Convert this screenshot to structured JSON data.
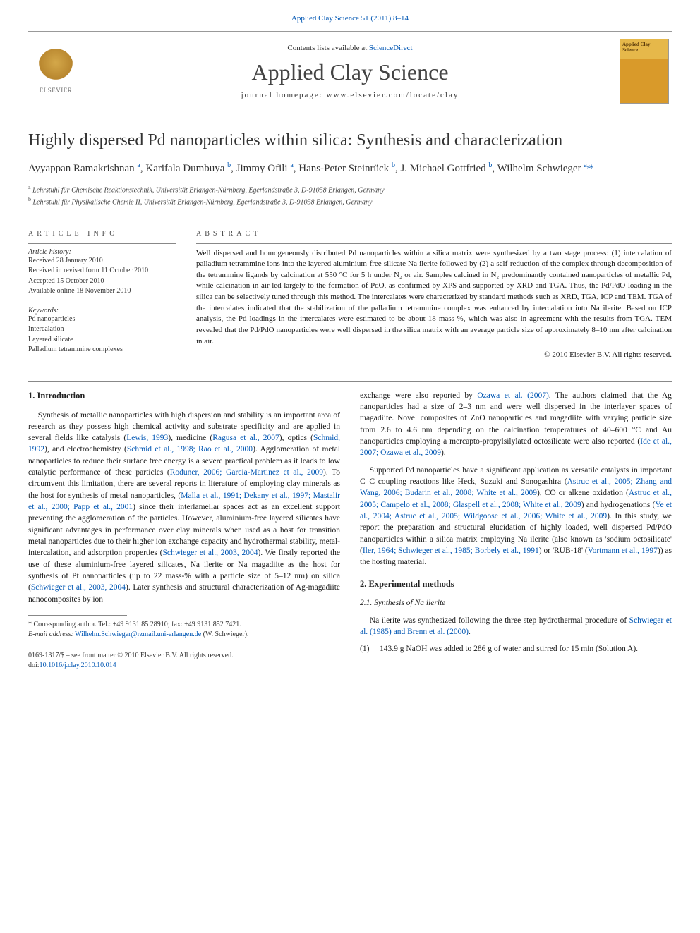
{
  "topbar": "Applied Clay Science 51 (2011) 8–14",
  "masthead": {
    "publisher": "ELSEVIER",
    "contents_prefix": "Contents lists available at ",
    "contents_link": "ScienceDirect",
    "journal_title": "Applied Clay Science",
    "homepage_prefix": "journal homepage: ",
    "homepage": "www.elsevier.com/locate/clay",
    "cover_title": "Applied Clay Science"
  },
  "article_title": "Highly dispersed Pd nanoparticles within silica: Synthesis and characterization",
  "authors_html": "Ayyappan Ramakrishnan <sup>a</sup>, Karifala Dumbuya <sup>b</sup>, Jimmy Ofili <sup>a</sup>, Hans-Peter Steinrück <sup>b</sup>, J. Michael Gottfried <sup>b</sup>, Wilhelm Schwieger <sup>a,</sup><span class=\"corr\">*</span>",
  "affiliations": [
    {
      "sup": "a",
      "text": "Lehrstuhl für Chemische Reaktionstechnik, Universität Erlangen-Nürnberg, Egerlandstraße 3, D-91058 Erlangen, Germany"
    },
    {
      "sup": "b",
      "text": "Lehrstuhl für Physikalische Chemie II, Universität Erlangen-Nürnberg, Egerlandstraße 3, D-91058 Erlangen, Germany"
    }
  ],
  "info": {
    "heading": "article info",
    "history_heading": "Article history:",
    "history": [
      "Received 28 January 2010",
      "Received in revised form 11 October 2010",
      "Accepted 15 October 2010",
      "Available online 18 November 2010"
    ],
    "keywords_heading": "Keywords:",
    "keywords": [
      "Pd nanoparticles",
      "Intercalation",
      "Layered silicate",
      "Palladium tetrammine complexes"
    ]
  },
  "abstract": {
    "heading": "abstract",
    "text": "Well dispersed and homogeneously distributed Pd nanoparticles within a silica matrix were synthesized by a two stage process: (1) intercalation of palladium tetrammine ions into the layered aluminium-free silicate Na ilerite followed by (2) a self-reduction of the complex through decomposition of the tetrammine ligands by calcination at 550 °C for 5 h under N₂ or air. Samples calcined in N₂ predominantly contained nanoparticles of metallic Pd, while calcination in air led largely to the formation of PdO, as confirmed by XPS and supported by XRD and TGA. Thus, the Pd/PdO loading in the silica can be selectively tuned through this method. The intercalates were characterized by standard methods such as XRD, TGA, ICP and TEM. TGA of the intercalates indicated that the stabilization of the palladium tetrammine complex was enhanced by intercalation into Na ilerite. Based on ICP analysis, the Pd loadings in the intercalates were estimated to be about 18 mass-%, which was also in agreement with the results from TGA. TEM revealed that the Pd/PdO nanoparticles were well dispersed in the silica matrix with an average particle size of approximately 8–10 nm after calcination in air.",
    "copyright": "© 2010 Elsevier B.V. All rights reserved."
  },
  "sections": {
    "s1_heading": "1. Introduction",
    "s1_p1_a": "Synthesis of metallic nanoparticles with high dispersion and stability is an important area of research as they possess high chemical activity and substrate specificity and are applied in several fields like catalysis (",
    "s1_p1_l1": "Lewis, 1993",
    "s1_p1_b": "), medicine (",
    "s1_p1_l2": "Ragusa et al., 2007",
    "s1_p1_c": "), optics (",
    "s1_p1_l3": "Schmid, 1992",
    "s1_p1_d": "), and electrochemistry (",
    "s1_p1_l4": "Schmid et al., 1998; Rao et al., 2000",
    "s1_p1_e": "). Agglomeration of metal nanoparticles to reduce their surface free energy is a severe practical problem as it leads to low catalytic performance of these particles (",
    "s1_p1_l5": "Roduner, 2006; Garcia-Martinez et al., 2009",
    "s1_p1_f": "). To circumvent this limitation, there are several reports in literature of employing clay minerals as the host for synthesis of metal nanoparticles, (",
    "s1_p1_l6": "Malla et al., 1991; Dekany et al., 1997; Mastalir et al., 2000; Papp et al., 2001",
    "s1_p1_g": ") since their interlamellar spaces act as an excellent support preventing the agglomeration of the particles. However, aluminium-free layered silicates have significant advantages in performance over clay minerals when used as a host for transition metal nanoparticles due to their higher ion exchange capacity and hydrothermal stability, metal-intercalation, and adsorption properties (",
    "s1_p1_l7": "Schwieger et al., 2003, 2004",
    "s1_p1_h": "). We firstly reported the use of these aluminium-free layered silicates, Na ilerite or Na magadiite as the host for synthesis of Pt nanoparticles (up to 22 mass-% with a particle size of 5–12 nm) on silica (",
    "s1_p1_l8": "Schwieger et al., 2003, 2004",
    "s1_p1_i": "). Later synthesis and structural characterization of Ag-magadiite nanocomposites by ion",
    "s1_p2_a": "exchange were also reported by ",
    "s1_p2_l1": "Ozawa et al. (2007)",
    "s1_p2_b": ". The authors claimed that the Ag nanoparticles had a size of 2–3 nm and were well dispersed in the interlayer spaces of magadiite. Novel composites of ZnO nanoparticles and magadiite with varying particle size from 2.6 to 4.6 nm depending on the calcination temperatures of 40–600 °C and Au nanoparticles employing a mercapto-propylsilylated octosilicate were also reported (",
    "s1_p2_l2": "Ide et al., 2007; Ozawa et al., 2009",
    "s1_p2_c": ").",
    "s1_p3_a": "Supported Pd nanoparticles have a significant application as versatile catalysts in important C–C coupling reactions like Heck, Suzuki and Sonogashira (",
    "s1_p3_l1": "Astruc et al., 2005; Zhang and Wang, 2006; Budarin et al., 2008; White et al., 2009",
    "s1_p3_b": "), CO or alkene oxidation (",
    "s1_p3_l2": "Astruc et al., 2005; Campelo et al., 2008; Glaspell et al., 2008; White et al., 2009",
    "s1_p3_c": ") and hydrogenations (",
    "s1_p3_l3": "Ye et al., 2004; Astruc et al., 2005; Wildgoose et al., 2006; White et al., 2009",
    "s1_p3_d": "). In this study, we report the preparation and structural elucidation of highly loaded, well dispersed Pd/PdO nanoparticles within a silica matrix employing Na ilerite (also known as 'sodium octosilicate' (",
    "s1_p3_l4": "Iler, 1964; Schwieger et al., 1985; Borbely et al., 1991",
    "s1_p3_e": ") or 'RUB-18' (",
    "s1_p3_l5": "Vortmann et al., 1997",
    "s1_p3_f": ")) as the hosting material.",
    "s2_heading": "2. Experimental methods",
    "s2_1_heading": "2.1. Synthesis of Na ilerite",
    "s2_1_p_a": "Na ilerite was synthesized following the three step hydrothermal procedure of ",
    "s2_1_p_l1": "Schwieger et al. (1985) and Brenn et al. (2000)",
    "s2_1_p_b": ".",
    "s2_1_item1_num": "(1)",
    "s2_1_item1_txt": "143.9 g NaOH was added to 286 g of water and stirred for 15 min (Solution A)."
  },
  "footnote": {
    "corr_label": "* Corresponding author. Tel.: +49 9131 85 28910; fax: +49 9131 852 7421.",
    "email_label": "E-mail address:",
    "email": "Wilhelm.Schwieger@rzmail.uni-erlangen.de",
    "email_suffix": " (W. Schwieger)."
  },
  "bottom": {
    "line1": "0169-1317/$ – see front matter © 2010 Elsevier B.V. All rights reserved.",
    "doi_prefix": "doi:",
    "doi": "10.1016/j.clay.2010.10.014"
  },
  "colors": {
    "link": "#0056b3",
    "text": "#1a1a1a",
    "rule": "#888888",
    "cover_top": "#e6b84a",
    "cover_bottom": "#d99a2a"
  }
}
